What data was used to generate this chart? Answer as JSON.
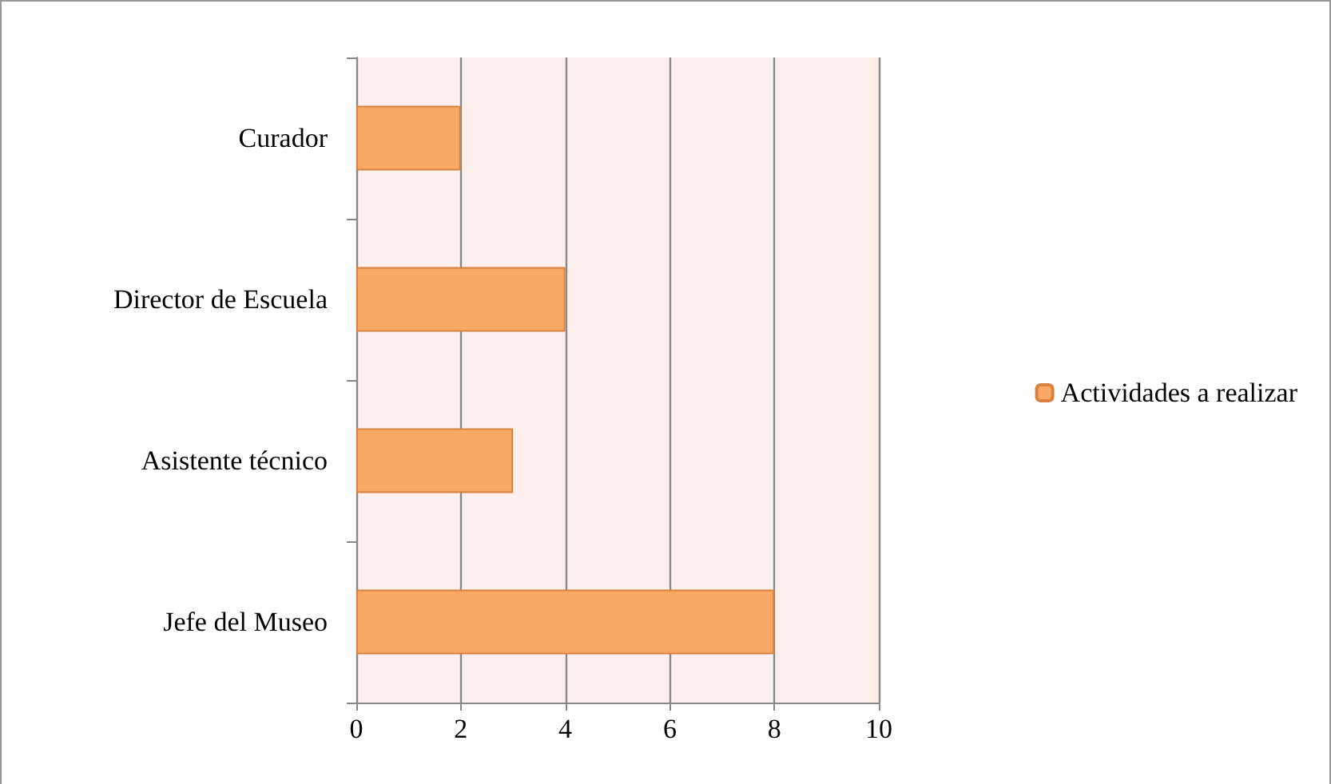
{
  "chart_data": {
    "type": "bar",
    "orientation": "horizontal",
    "categories": [
      "Curador",
      "Director de Escuela",
      "Asistente técnico",
      "Jefe del Museo"
    ],
    "series": [
      {
        "name": "Actividades a realizar",
        "color": "#f9a964",
        "values": [
          2,
          4,
          3,
          8
        ]
      }
    ],
    "xlim": [
      0,
      10
    ],
    "xticks": [
      0,
      2,
      4,
      6,
      8,
      10
    ],
    "grid": "x",
    "legend": "right"
  }
}
